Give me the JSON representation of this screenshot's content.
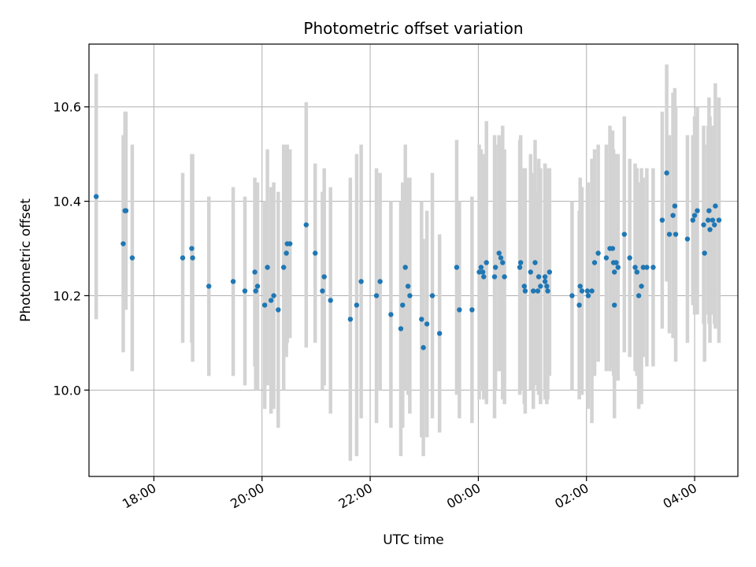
{
  "chart_data": {
    "type": "scatter",
    "title": "Photometric offset variation",
    "xlabel": "UTC time",
    "ylabel": "Photometric offset",
    "x_axis_kind": "time",
    "x_ticks": [
      "18:00",
      "20:00",
      "22:00",
      "00:00",
      "02:00",
      "04:00"
    ],
    "y_ticks": [
      "10.0",
      "10.2",
      "10.4",
      "10.6"
    ],
    "grid": true,
    "colors": {
      "points": "#1f77b4",
      "errorbars": "#d3d3d3",
      "grid": "#b0b0b0",
      "frame": "#000000"
    },
    "series": [
      {
        "x": [
          "16:56",
          "17:26",
          "17:28",
          "17:29",
          "17:36",
          "18:32",
          "18:42",
          "18:43",
          "19:01",
          "19:28",
          "19:41",
          "19:52",
          "19:53",
          "19:55",
          "20:03",
          "20:06",
          "20:10",
          "20:13",
          "20:18",
          "20:24",
          "20:27",
          "20:28",
          "20:31",
          "20:49",
          "20:59",
          "21:07",
          "21:09",
          "21:16",
          "21:38",
          "21:45",
          "21:50",
          "22:07",
          "22:11",
          "22:23",
          "22:34",
          "22:36",
          "22:39",
          "22:42",
          "22:44",
          "22:57",
          "22:59",
          "23:03",
          "23:09",
          "23:17",
          "23:36",
          "23:39",
          "23:53",
          "24:01",
          "24:03",
          "24:05",
          "24:06",
          "24:09",
          "24:18",
          "24:19",
          "24:23",
          "24:25",
          "24:27",
          "24:29",
          "24:46",
          "24:47",
          "24:51",
          "24:52",
          "24:58",
          "25:01",
          "25:03",
          "25:06",
          "25:07",
          "25:09",
          "25:14",
          "25:14",
          "25:16",
          "25:17",
          "25:19",
          "25:44",
          "25:52",
          "25:53",
          "25:55",
          "26:01",
          "26:02",
          "26:06",
          "26:09",
          "26:13",
          "26:22",
          "26:26",
          "26:29",
          "26:30",
          "26:31",
          "26:31",
          "26:33",
          "26:35",
          "26:42",
          "26:48",
          "26:54",
          "26:56",
          "26:58",
          "27:01",
          "27:03",
          "27:07",
          "27:14",
          "27:24",
          "27:29",
          "27:32",
          "27:36",
          "27:38",
          "27:39",
          "27:52",
          "27:58",
          "28:00",
          "28:03",
          "28:10",
          "28:11",
          "28:15",
          "28:16",
          "28:17",
          "28:20",
          "28:22",
          "28:23",
          "28:27"
        ],
        "y": [
          10.41,
          10.31,
          10.38,
          10.38,
          10.28,
          10.28,
          10.3,
          10.28,
          10.22,
          10.23,
          10.21,
          10.25,
          10.21,
          10.22,
          10.18,
          10.26,
          10.19,
          10.2,
          10.17,
          10.26,
          10.29,
          10.31,
          10.31,
          10.35,
          10.29,
          10.21,
          10.24,
          10.19,
          10.15,
          10.18,
          10.23,
          10.2,
          10.23,
          10.16,
          10.13,
          10.18,
          10.26,
          10.22,
          10.2,
          10.15,
          10.09,
          10.14,
          10.2,
          10.12,
          10.26,
          10.17,
          10.17,
          10.25,
          10.26,
          10.25,
          10.24,
          10.27,
          10.24,
          10.26,
          10.29,
          10.28,
          10.27,
          10.24,
          10.26,
          10.27,
          10.22,
          10.21,
          10.25,
          10.21,
          10.27,
          10.21,
          10.24,
          10.22,
          10.23,
          10.24,
          10.22,
          10.21,
          10.25,
          10.2,
          10.18,
          10.22,
          10.21,
          10.21,
          10.2,
          10.21,
          10.27,
          10.29,
          10.28,
          10.3,
          10.3,
          10.27,
          10.25,
          10.18,
          10.27,
          10.26,
          10.33,
          10.28,
          10.26,
          10.25,
          10.2,
          10.22,
          10.26,
          10.26,
          10.26,
          10.36,
          10.46,
          10.33,
          10.37,
          10.39,
          10.33,
          10.32,
          10.36,
          10.37,
          10.38,
          10.35,
          10.29,
          10.36,
          10.38,
          10.34,
          10.36,
          10.35,
          10.39,
          10.36
        ],
        "err": [
          0.26,
          0.23,
          0.21,
          0.21,
          0.24,
          0.18,
          0.2,
          0.22,
          0.19,
          0.2,
          0.2,
          0.2,
          0.21,
          0.22,
          0.22,
          0.25,
          0.24,
          0.24,
          0.25,
          0.26,
          0.22,
          0.21,
          0.2,
          0.26,
          0.19,
          0.21,
          0.23,
          0.24,
          0.3,
          0.32,
          0.29,
          0.27,
          0.23,
          0.24,
          0.27,
          0.26,
          0.26,
          0.23,
          0.25,
          0.25,
          0.23,
          0.24,
          0.26,
          0.21,
          0.27,
          0.23,
          0.24,
          0.27,
          0.25,
          0.25,
          0.26,
          0.3,
          0.3,
          0.26,
          0.25,
          0.24,
          0.29,
          0.27,
          0.27,
          0.27,
          0.25,
          0.26,
          0.25,
          0.25,
          0.26,
          0.21,
          0.25,
          0.25,
          0.25,
          0.24,
          0.25,
          0.23,
          0.22,
          0.2,
          0.2,
          0.23,
          0.22,
          0.22,
          0.24,
          0.28,
          0.24,
          0.23,
          0.24,
          0.26,
          0.25,
          0.24,
          0.25,
          0.24,
          0.23,
          0.24,
          0.25,
          0.21,
          0.22,
          0.22,
          0.24,
          0.25,
          0.19,
          0.21,
          0.21,
          0.23,
          0.23,
          0.21,
          0.26,
          0.25,
          0.27,
          0.22,
          0.18,
          0.21,
          0.22,
          0.21,
          0.23,
          0.2,
          0.24,
          0.24,
          0.2,
          0.21,
          0.26,
          0.26
        ]
      }
    ]
  }
}
